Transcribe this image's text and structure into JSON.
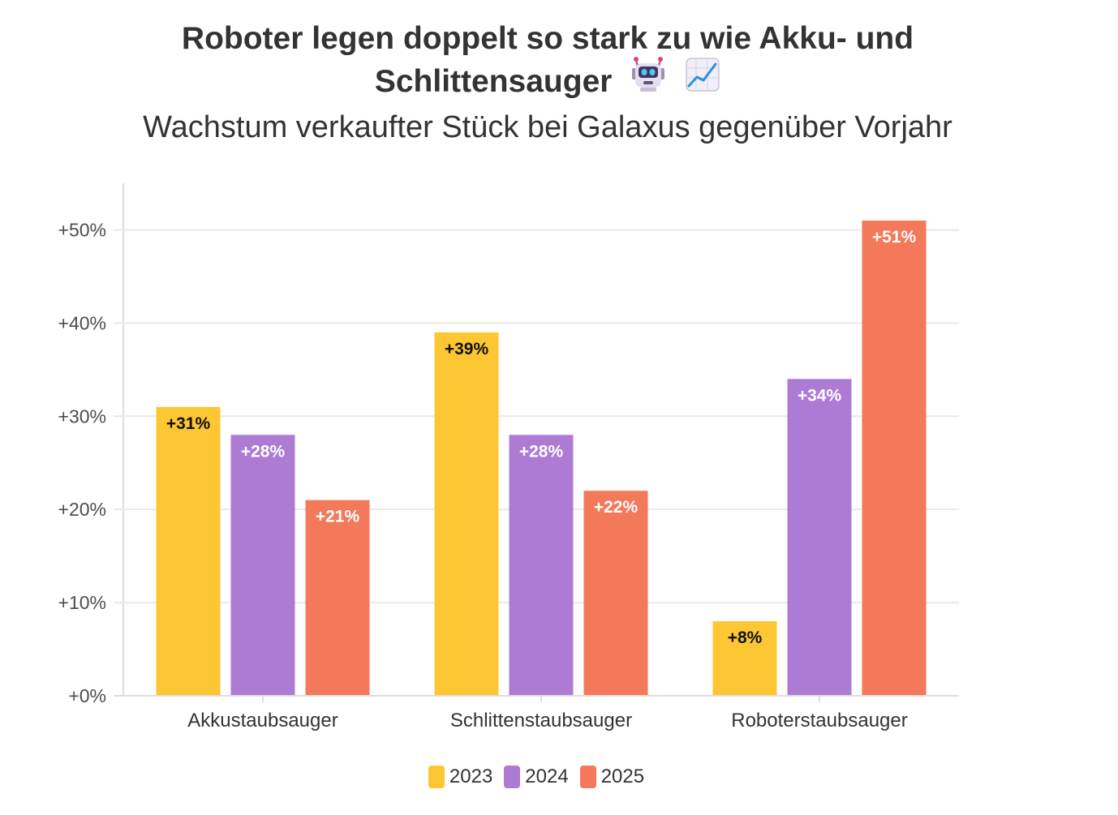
{
  "title": {
    "line1": "Roboter legen doppelt so stark zu wie Akku- und",
    "line2": "Schlittensauger",
    "icons": [
      "robot-emoji-icon",
      "chart-increasing-emoji-icon"
    ]
  },
  "subtitle": "Wachstum verkaufter Stück bei Galaxus gegenüber Vorjahr",
  "colors": {
    "2023": "#FDC633",
    "2024": "#AE7BD4",
    "2025": "#F4785A",
    "grid": "#E9E9E9",
    "axis": "#DDDDDD",
    "text": "#333333"
  },
  "chart_data": {
    "type": "bar",
    "categories": [
      "Akkustaubsauger",
      "Schlittenstaubsauger",
      "Roboterstaubsauger"
    ],
    "series": [
      {
        "name": "2023",
        "values": [
          31,
          39,
          8
        ],
        "labels": [
          "+31%",
          "+39%",
          "+8%"
        ]
      },
      {
        "name": "2024",
        "values": [
          28,
          28,
          34
        ],
        "labels": [
          "+28%",
          "+28%",
          "+34%"
        ]
      },
      {
        "name": "2025",
        "values": [
          21,
          22,
          51
        ],
        "labels": [
          "+21%",
          "+22%",
          "+51%"
        ]
      }
    ],
    "ylim": [
      0,
      55
    ],
    "yticks": [
      0,
      10,
      20,
      30,
      40,
      50
    ],
    "ytick_labels": [
      "+0%",
      "+10%",
      "+20%",
      "+30%",
      "+40%",
      "+50%"
    ],
    "xlabel": "",
    "ylabel": "",
    "grid": true,
    "legend_position": "bottom-center"
  },
  "legend": [
    {
      "label": "2023"
    },
    {
      "label": "2024"
    },
    {
      "label": "2025"
    }
  ]
}
